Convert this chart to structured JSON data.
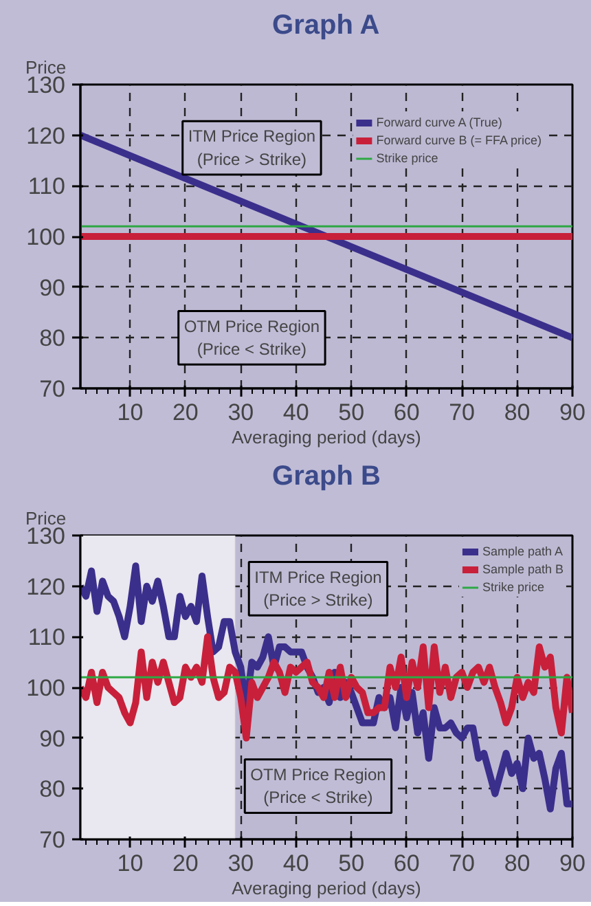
{
  "chart_data": [
    {
      "type": "line",
      "title": "Graph A",
      "ylabel": "Price",
      "xlabel": "Averaging period (days)",
      "x": [
        1,
        90
      ],
      "series": [
        {
          "name": "Forward curve A (True)",
          "color": "#3b2f8c",
          "values": [
            120,
            80
          ]
        },
        {
          "name": "Forward curve B (= FFA price)",
          "color": "#c8203a",
          "values": [
            100,
            100
          ]
        },
        {
          "name": "Strike price",
          "color": "#2ea844",
          "values": [
            102,
            102
          ]
        }
      ],
      "xlim": [
        1,
        90
      ],
      "ylim": [
        70,
        130
      ],
      "xticks": [
        10,
        20,
        30,
        40,
        50,
        60,
        70,
        80,
        90
      ],
      "yticks": [
        70,
        80,
        90,
        100,
        110,
        120,
        130
      ],
      "grid": true,
      "legend": "top right",
      "annotations": [
        "ITM Price Region\n(Price > Strike)",
        "OTM Price Region\n(Price < Strike)"
      ]
    },
    {
      "type": "line",
      "title": "Graph B",
      "ylabel": "Price",
      "xlabel": "Averaging period (days)",
      "x": [
        1,
        2,
        3,
        4,
        5,
        6,
        7,
        8,
        9,
        10,
        11,
        12,
        13,
        14,
        15,
        16,
        17,
        18,
        19,
        20,
        21,
        22,
        23,
        24,
        25,
        26,
        27,
        28,
        29,
        30,
        31,
        32,
        33,
        34,
        35,
        36,
        37,
        38,
        39,
        40,
        41,
        42,
        43,
        44,
        45,
        46,
        47,
        48,
        49,
        50,
        51,
        52,
        53,
        54,
        55,
        56,
        57,
        58,
        59,
        60,
        61,
        62,
        63,
        64,
        65,
        66,
        67,
        68,
        69,
        70,
        71,
        72,
        73,
        74,
        75,
        76,
        77,
        78,
        79,
        80,
        81,
        82,
        83,
        84,
        85,
        86,
        87,
        88,
        89,
        90
      ],
      "series": [
        {
          "name": "Sample path A",
          "color": "#3b2f8c",
          "values": [
            120,
            118,
            123,
            115,
            121,
            118,
            117,
            114,
            110,
            116,
            124,
            113,
            120,
            117,
            121,
            116,
            110,
            110,
            118,
            114,
            116,
            113,
            122,
            114,
            107,
            108,
            113,
            113,
            107,
            104,
            96,
            105,
            104,
            106,
            110,
            104,
            108,
            108,
            107,
            107,
            107,
            104,
            102,
            99,
            100,
            97,
            103,
            98,
            101,
            99,
            96,
            93,
            93,
            93,
            98,
            96,
            98,
            92,
            100,
            94,
            99,
            91,
            95,
            86,
            96,
            92,
            92,
            93,
            91,
            90,
            92,
            92,
            86,
            87,
            83,
            79,
            83,
            87,
            83,
            85,
            80,
            90,
            86,
            87,
            82,
            76,
            84,
            87,
            77,
            77
          ]
        },
        {
          "name": "Sample path B",
          "color": "#c8203a",
          "values": [
            100,
            98,
            103,
            97,
            103,
            100,
            99,
            98,
            95,
            93,
            97,
            107,
            98,
            105,
            101,
            105,
            101,
            97,
            98,
            104,
            102,
            104,
            101,
            110,
            102,
            98,
            99,
            104,
            103,
            98,
            90,
            101,
            98,
            100,
            102,
            105,
            103,
            99,
            104,
            103,
            104,
            105,
            101,
            100,
            98,
            103,
            98,
            104,
            98,
            102,
            100,
            99,
            95,
            95,
            96,
            96,
            104,
            100,
            106,
            98,
            105,
            100,
            108,
            96,
            108,
            99,
            104,
            98,
            102,
            103,
            100,
            103,
            104,
            101,
            104,
            100,
            97,
            93,
            96,
            102,
            98,
            101,
            99,
            108,
            104,
            106,
            96,
            91,
            102,
            95
          ]
        },
        {
          "name": "Strike price",
          "color": "#2ea844",
          "x": [
            1,
            90
          ],
          "values": [
            102,
            102
          ]
        }
      ],
      "bands": [
        {
          "axis": "x",
          "from": 1,
          "to": 29,
          "color": "#e9e7ef"
        }
      ],
      "xlim": [
        1,
        90
      ],
      "ylim": [
        70,
        130
      ],
      "xticks": [
        10,
        20,
        30,
        40,
        50,
        60,
        70,
        80,
        90
      ],
      "yticks": [
        70,
        80,
        90,
        100,
        110,
        120,
        130
      ],
      "grid": true,
      "legend": "top right",
      "annotations": [
        "ITM Price Region\n(Price > Strike)",
        "OTM Price Region\n(Price < Strike)"
      ]
    }
  ]
}
